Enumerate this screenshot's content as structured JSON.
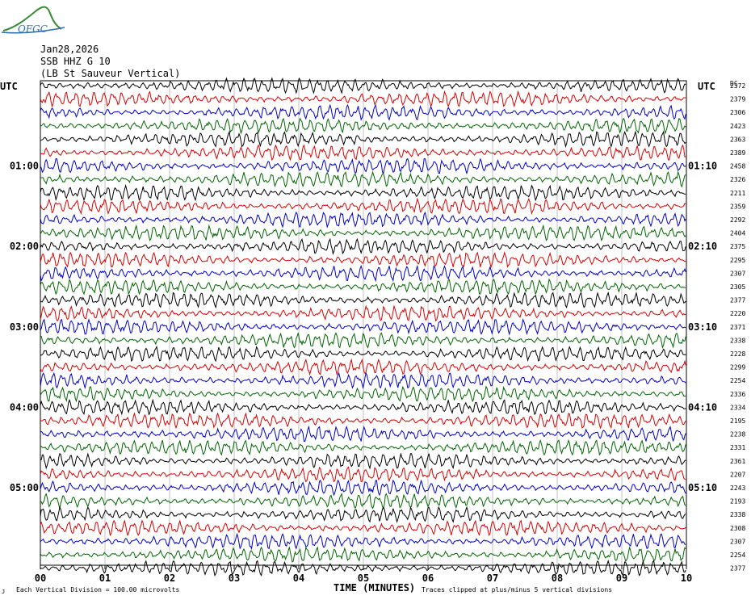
{
  "logo": {
    "text": "OFGC",
    "color": "#3a8a3a"
  },
  "header": {
    "date": "Jan28,2026",
    "station": "SSB HHZ G 10",
    "location": "(LB  St Sauveur Vertical)",
    "utc_left": "UTC",
    "utc_right": "UTC",
    "dc_label": "DC"
  },
  "footer": {
    "xlabel": "TIME (MINUTES)",
    "division_note": "Each Vertical Division =  100.00 microvolts",
    "clip_note": "Traces clipped at plus/minus 5 vertical divisions",
    "corner_mark": "J"
  },
  "chart_data": {
    "type": "line",
    "title": "",
    "xlabel": "TIME (MINUTES)",
    "ylabel": "",
    "xlim": [
      0,
      10
    ],
    "x_ticks": [
      "00",
      "01",
      "02",
      "03",
      "04",
      "05",
      "06",
      "07",
      "08",
      "09",
      "10"
    ],
    "grid": true,
    "trace_colors": [
      "#000000",
      "#dd0000",
      "#0000cc",
      "#006600"
    ],
    "left_time_labels": [
      {
        "label": "01:00",
        "trace": 6
      },
      {
        "label": "02:00",
        "trace": 12
      },
      {
        "label": "03:00",
        "trace": 18
      },
      {
        "label": "04:00",
        "trace": 24
      },
      {
        "label": "05:00",
        "trace": 30
      }
    ],
    "right_time_labels": [
      {
        "label": "01:10",
        "trace": 6
      },
      {
        "label": "02:10",
        "trace": 12
      },
      {
        "label": "03:10",
        "trace": 18
      },
      {
        "label": "04:10",
        "trace": 24
      },
      {
        "label": "05:10",
        "trace": 30
      }
    ],
    "dc_values": [
      "2372",
      "2379",
      "2306",
      "2423",
      "2363",
      "2389",
      "2458",
      "2326",
      "2211",
      "2359",
      "2292",
      "2404",
      "2375",
      "2295",
      "2307",
      "2305",
      "2377",
      "2220",
      "2371",
      "2338",
      "2228",
      "2299",
      "2254",
      "2336",
      "2334",
      "2195",
      "2238",
      "2331",
      "2361",
      "2207",
      "2243",
      "2193",
      "2338",
      "2308",
      "2307",
      "2254",
      "2377"
    ]
  }
}
